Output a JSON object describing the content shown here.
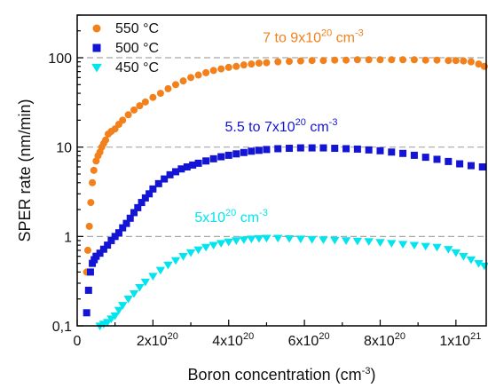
{
  "chart_data": {
    "type": "scatter",
    "xlabel": "Boron concentration",
    "xlabel_unit_base": "(cm",
    "xlabel_unit_exp": "-3",
    "xlabel_unit_close": ")",
    "ylabel": "SPER rate (nm/min)",
    "xlim": [
      0,
      1.08e+21
    ],
    "ylim": [
      0.1,
      300
    ],
    "yscale": "log",
    "grid": "dashed horizontal reference lines at 1, 10 and 100",
    "legend_placement": "top-left",
    "x_ticks": [
      {
        "value": 0,
        "mant": "0",
        "exp": ""
      },
      {
        "value": 2e+20,
        "mant": "2x10",
        "exp": "20"
      },
      {
        "value": 4e+20,
        "mant": "4x10",
        "exp": "20"
      },
      {
        "value": 6e+20,
        "mant": "6x10",
        "exp": "20"
      },
      {
        "value": 8e+20,
        "mant": "8x10",
        "exp": "20"
      },
      {
        "value": 1e+21,
        "mant": "1x10",
        "exp": "21"
      }
    ],
    "y_ticks": [
      {
        "value": 0.1,
        "label": "0,1"
      },
      {
        "value": 1,
        "label": "1"
      },
      {
        "value": 10,
        "label": "10"
      },
      {
        "value": 100,
        "label": "100"
      }
    ],
    "series": [
      {
        "name": "550 °C",
        "color": "#f2801b",
        "marker": "circle",
        "x": [
          2.5e+19,
          2.8e+19,
          3.2e+19,
          3.6e+19,
          4e+19,
          4.4e+19,
          5e+19,
          5.5e+19,
          6e+19,
          6.5e+19,
          7e+19,
          7.5e+19,
          8.2e+19,
          9e+19,
          1e+20,
          1.1e+20,
          1.2e+20,
          1.35e+20,
          1.5e+20,
          1.65e+20,
          1.8e+20,
          2e+20,
          2.2e+20,
          2.4e+20,
          2.6e+20,
          2.8e+20,
          3e+20,
          3.2e+20,
          3.4e+20,
          3.6e+20,
          3.8e+20,
          4e+20,
          4.2e+20,
          4.4e+20,
          4.6e+20,
          4.8e+20,
          5e+20,
          5.3e+20,
          5.6e+20,
          5.9e+20,
          6.2e+20,
          6.5e+20,
          6.8e+20,
          7.1e+20,
          7.4e+20,
          7.7e+20,
          8e+20,
          8.3e+20,
          8.6e+20,
          8.9e+20,
          9.2e+20,
          9.5e+20,
          9.8e+20,
          1e+21,
          1.02e+21,
          1.04e+21,
          1.06e+21,
          1.075e+21
        ],
        "values": [
          0.4,
          0.7,
          1.3,
          2.4,
          4.0,
          5.5,
          7.0,
          8.0,
          8.8,
          10,
          11,
          12,
          14,
          15,
          16,
          18,
          20,
          23,
          26,
          29,
          32,
          36,
          40,
          45,
          50,
          55,
          60,
          64,
          68,
          72,
          75,
          78,
          80,
          83,
          85,
          87,
          88,
          90,
          91,
          92,
          93,
          93,
          94,
          94,
          95,
          95,
          95,
          95,
          95,
          95,
          94,
          94,
          93,
          93,
          92,
          90,
          85,
          80
        ]
      },
      {
        "name": "500 °C",
        "color": "#1414d4",
        "marker": "square",
        "x": [
          2.5e+19,
          3e+19,
          3.5e+19,
          4e+19,
          4.5e+19,
          5e+19,
          6e+19,
          7e+19,
          8e+19,
          9e+19,
          1e+20,
          1.1e+20,
          1.2e+20,
          1.3e+20,
          1.4e+20,
          1.5e+20,
          1.6e+20,
          1.7e+20,
          1.8e+20,
          1.9e+20,
          2e+20,
          2.15e+20,
          2.3e+20,
          2.45e+20,
          2.6e+20,
          2.75e+20,
          2.9e+20,
          3.05e+20,
          3.2e+20,
          3.4e+20,
          3.6e+20,
          3.8e+20,
          4e+20,
          4.2e+20,
          4.4e+20,
          4.6e+20,
          4.8e+20,
          5e+20,
          5.3e+20,
          5.6e+20,
          5.9e+20,
          6.2e+20,
          6.5e+20,
          6.8e+20,
          7.1e+20,
          7.4e+20,
          7.7e+20,
          8e+20,
          8.3e+20,
          8.6e+20,
          8.9e+20,
          9.2e+20,
          9.5e+20,
          9.8e+20,
          1.01e+21,
          1.04e+21,
          1.07e+21
        ],
        "values": [
          0.14,
          0.25,
          0.4,
          0.5,
          0.55,
          0.6,
          0.65,
          0.72,
          0.8,
          0.9,
          1.0,
          1.1,
          1.25,
          1.4,
          1.6,
          1.85,
          2.1,
          2.4,
          2.7,
          3.0,
          3.4,
          3.9,
          4.4,
          4.9,
          5.3,
          5.7,
          6.0,
          6.3,
          6.6,
          7.0,
          7.4,
          7.8,
          8.1,
          8.4,
          8.7,
          9.0,
          9.2,
          9.4,
          9.6,
          9.7,
          9.8,
          9.8,
          9.8,
          9.7,
          9.6,
          9.5,
          9.3,
          9.1,
          8.8,
          8.5,
          8.1,
          7.7,
          7.3,
          6.9,
          6.5,
          6.2,
          6.0
        ]
      },
      {
        "name": "450 °C",
        "color": "#00e5ee",
        "marker": "triangle-down",
        "x": [
          6e+19,
          7e+19,
          8e+19,
          9e+19,
          1e+20,
          1.1e+20,
          1.2e+20,
          1.35e+20,
          1.5e+20,
          1.65e+20,
          1.8e+20,
          2e+20,
          2.2e+20,
          2.4e+20,
          2.6e+20,
          2.8e+20,
          3e+20,
          3.2e+20,
          3.4e+20,
          3.6e+20,
          3.8e+20,
          4e+20,
          4.2e+20,
          4.4e+20,
          4.6e+20,
          4.8e+20,
          5e+20,
          5.3e+20,
          5.6e+20,
          5.9e+20,
          6.2e+20,
          6.5e+20,
          6.8e+20,
          7.1e+20,
          7.4e+20,
          7.7e+20,
          8e+20,
          8.3e+20,
          8.6e+20,
          8.9e+20,
          9.2e+20,
          9.5e+20,
          9.8e+20,
          1e+21,
          1.02e+21,
          1.04e+21,
          1.06e+21,
          1.075e+21
        ],
        "values": [
          0.1,
          0.105,
          0.11,
          0.12,
          0.13,
          0.15,
          0.17,
          0.2,
          0.23,
          0.27,
          0.31,
          0.36,
          0.42,
          0.48,
          0.54,
          0.6,
          0.66,
          0.71,
          0.76,
          0.8,
          0.84,
          0.87,
          0.9,
          0.92,
          0.94,
          0.95,
          0.96,
          0.96,
          0.95,
          0.94,
          0.93,
          0.92,
          0.91,
          0.9,
          0.89,
          0.88,
          0.86,
          0.84,
          0.82,
          0.8,
          0.78,
          0.76,
          0.72,
          0.66,
          0.6,
          0.55,
          0.5,
          0.47
        ]
      }
    ],
    "reference_lines": [
      1,
      10,
      100
    ],
    "annotations": [
      {
        "mant": "7 to 9x10",
        "exp": "20",
        "unit": " cm",
        "unit_exp": "-3",
        "color": "#f2801b",
        "anchor_x": 4.9e+20,
        "anchor_y": 150
      },
      {
        "mant": "5.5 to 7x10",
        "exp": "20",
        "unit": " cm",
        "unit_exp": "-3",
        "color": "#1414d4",
        "anchor_x": 3.9e+20,
        "anchor_y": 15
      },
      {
        "mant": "5x10",
        "exp": "20",
        "unit": " cm",
        "unit_exp": "-3",
        "color": "#00e5ee",
        "anchor_x": 3.1e+20,
        "anchor_y": 1.45
      }
    ]
  }
}
